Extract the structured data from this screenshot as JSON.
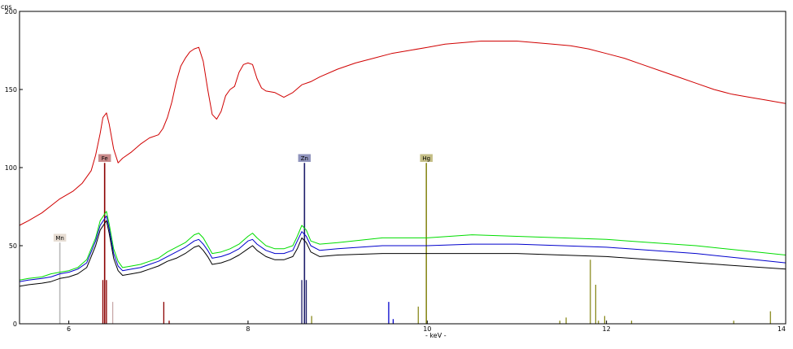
{
  "chart_data": {
    "type": "line",
    "xlabel": "- keV -",
    "ylabel": "cps",
    "xlim": [
      5.45,
      14.0
    ],
    "ylim": [
      0,
      200
    ],
    "x_ticks": [
      6,
      8,
      10,
      12,
      14
    ],
    "y_ticks": [
      0,
      50,
      100,
      150,
      200
    ],
    "grid": false,
    "series": [
      {
        "color": "#d00000",
        "x": [
          5.45,
          5.55,
          5.7,
          5.9,
          6.05,
          6.15,
          6.25,
          6.3,
          6.35,
          6.38,
          6.42,
          6.45,
          6.5,
          6.55,
          6.6,
          6.7,
          6.8,
          6.9,
          7.0,
          7.05,
          7.1,
          7.15,
          7.2,
          7.25,
          7.3,
          7.35,
          7.4,
          7.45,
          7.5,
          7.55,
          7.6,
          7.65,
          7.7,
          7.75,
          7.8,
          7.85,
          7.9,
          7.95,
          8.0,
          8.05,
          8.1,
          8.15,
          8.2,
          8.3,
          8.4,
          8.5,
          8.6,
          8.7,
          8.8,
          9.0,
          9.2,
          9.4,
          9.6,
          9.8,
          10.0,
          10.2,
          10.4,
          10.6,
          10.8,
          11.0,
          11.2,
          11.4,
          11.6,
          11.8,
          12.0,
          12.2,
          12.4,
          12.6,
          12.8,
          13.0,
          13.2,
          13.4,
          13.6,
          13.8,
          14.0
        ],
        "y": [
          63,
          66,
          71,
          80,
          85,
          90,
          98,
          108,
          122,
          132,
          135,
          128,
          112,
          103,
          106,
          110,
          115,
          119,
          121,
          125,
          132,
          142,
          155,
          165,
          170,
          174,
          176,
          177,
          168,
          150,
          134,
          131,
          136,
          146,
          150,
          152,
          161,
          166,
          167,
          166,
          157,
          151,
          149,
          148,
          145,
          148,
          153,
          155,
          158,
          163,
          167,
          170,
          173,
          175,
          177,
          179,
          180,
          181,
          181,
          181,
          180,
          179,
          178,
          176,
          173,
          170,
          166,
          162,
          158,
          154,
          150,
          147,
          145,
          143,
          141
        ]
      },
      {
        "color": "#00dd00",
        "x": [
          5.45,
          5.55,
          5.7,
          5.8,
          5.9,
          6.0,
          6.1,
          6.2,
          6.3,
          6.35,
          6.42,
          6.45,
          6.5,
          6.55,
          6.6,
          6.7,
          6.8,
          6.9,
          7.0,
          7.1,
          7.2,
          7.3,
          7.4,
          7.45,
          7.5,
          7.55,
          7.6,
          7.7,
          7.8,
          7.9,
          8.0,
          8.05,
          8.1,
          8.2,
          8.3,
          8.4,
          8.5,
          8.55,
          8.6,
          8.65,
          8.7,
          8.8,
          9.0,
          9.5,
          10.0,
          10.5,
          11.0,
          11.5,
          12.0,
          12.5,
          13.0,
          13.5,
          14.0
        ],
        "y": [
          28,
          29,
          30,
          32,
          33,
          34,
          36,
          41,
          55,
          66,
          72,
          64,
          48,
          40,
          36,
          37,
          38,
          40,
          42,
          46,
          49,
          52,
          57,
          58,
          55,
          50,
          45,
          46,
          48,
          51,
          56,
          58,
          55,
          50,
          48,
          48,
          50,
          56,
          63,
          60,
          53,
          51,
          52,
          55,
          55,
          57,
          56,
          55,
          54,
          52,
          50,
          47,
          44
        ]
      },
      {
        "color": "#0000cc",
        "x": [
          5.45,
          5.55,
          5.7,
          5.8,
          5.9,
          6.0,
          6.1,
          6.2,
          6.3,
          6.35,
          6.42,
          6.45,
          6.5,
          6.55,
          6.6,
          6.7,
          6.8,
          6.9,
          7.0,
          7.1,
          7.2,
          7.3,
          7.4,
          7.45,
          7.5,
          7.55,
          7.6,
          7.7,
          7.8,
          7.9,
          8.0,
          8.05,
          8.1,
          8.2,
          8.3,
          8.4,
          8.5,
          8.55,
          8.6,
          8.65,
          8.7,
          8.8,
          9.0,
          9.5,
          10.0,
          10.5,
          11.0,
          11.5,
          12.0,
          12.5,
          13.0,
          13.5,
          14.0
        ],
        "y": [
          27,
          28,
          29,
          30,
          32,
          33,
          35,
          39,
          53,
          63,
          69,
          61,
          45,
          37,
          34,
          35,
          36,
          38,
          40,
          43,
          46,
          49,
          53,
          54,
          51,
          47,
          42,
          43,
          45,
          48,
          53,
          54,
          51,
          47,
          45,
          45,
          47,
          53,
          59,
          56,
          50,
          47,
          48,
          50,
          50,
          51,
          51,
          50,
          49,
          47,
          45,
          42,
          39
        ]
      },
      {
        "color": "#000000",
        "x": [
          5.45,
          5.55,
          5.7,
          5.8,
          5.9,
          6.0,
          6.1,
          6.2,
          6.3,
          6.35,
          6.42,
          6.45,
          6.5,
          6.55,
          6.6,
          6.7,
          6.8,
          6.9,
          7.0,
          7.1,
          7.2,
          7.3,
          7.4,
          7.45,
          7.5,
          7.55,
          7.6,
          7.7,
          7.8,
          7.9,
          8.0,
          8.05,
          8.1,
          8.2,
          8.3,
          8.4,
          8.5,
          8.55,
          8.6,
          8.65,
          8.7,
          8.8,
          9.0,
          9.5,
          10.0,
          10.5,
          11.0,
          11.5,
          12.0,
          12.5,
          13.0,
          13.5,
          14.0
        ],
        "y": [
          24,
          25,
          26,
          27,
          29,
          30,
          32,
          36,
          50,
          60,
          66,
          58,
          42,
          34,
          31,
          32,
          33,
          35,
          37,
          40,
          42,
          45,
          49,
          50,
          47,
          43,
          38,
          39,
          41,
          44,
          48,
          50,
          47,
          43,
          41,
          41,
          43,
          48,
          55,
          52,
          46,
          43,
          44,
          45,
          45,
          45,
          45,
          44,
          43,
          41,
          39,
          37,
          35
        ]
      }
    ],
    "markers": [
      {
        "label": "Mn",
        "x": 5.9,
        "height": 52,
        "color": "#b8b8b8",
        "label_bg": "#e6dcd2"
      },
      {
        "label": "Fe",
        "x": 6.4,
        "height": 103,
        "color": "#8b0000",
        "label_bg": "#c98a8a"
      },
      {
        "label": "Zn",
        "x": 8.63,
        "height": 103,
        "color": "#1c1c6a",
        "label_bg": "#8f93bc"
      },
      {
        "label": "Hg",
        "x": 9.99,
        "height": 103,
        "color": "#8a8a1e",
        "label_bg": "#c4be86"
      }
    ],
    "secondary_lines": [
      {
        "x": 6.38,
        "height": 28,
        "color": "#8b0000"
      },
      {
        "x": 6.42,
        "height": 28,
        "color": "#8b0000"
      },
      {
        "x": 6.49,
        "height": 14,
        "color": "#c8a8a8"
      },
      {
        "x": 7.06,
        "height": 14,
        "color": "#8b0000"
      },
      {
        "x": 7.12,
        "height": 2,
        "color": "#8b0000"
      },
      {
        "x": 8.6,
        "height": 28,
        "color": "#1c1c6a"
      },
      {
        "x": 8.65,
        "height": 28,
        "color": "#1c1c6a"
      },
      {
        "x": 8.71,
        "height": 5,
        "color": "#8a8a1e"
      },
      {
        "x": 9.57,
        "height": 14,
        "color": "#0000cc"
      },
      {
        "x": 9.62,
        "height": 3,
        "color": "#0000cc"
      },
      {
        "x": 9.9,
        "height": 11,
        "color": "#8a8a1e"
      },
      {
        "x": 11.48,
        "height": 2,
        "color": "#8a8a1e"
      },
      {
        "x": 11.55,
        "height": 4,
        "color": "#8a8a1e"
      },
      {
        "x": 11.82,
        "height": 41,
        "color": "#8a8a1e"
      },
      {
        "x": 11.88,
        "height": 25,
        "color": "#8a8a1e"
      },
      {
        "x": 11.91,
        "height": 2,
        "color": "#8a8a1e"
      },
      {
        "x": 11.98,
        "height": 5,
        "color": "#8a8a1e"
      },
      {
        "x": 12.28,
        "height": 2,
        "color": "#8a8a1e"
      },
      {
        "x": 13.42,
        "height": 2,
        "color": "#8a8a1e"
      },
      {
        "x": 13.83,
        "height": 8,
        "color": "#8a8a1e"
      }
    ]
  }
}
